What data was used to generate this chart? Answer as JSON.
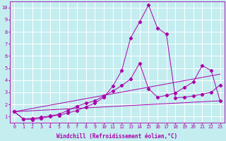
{
  "background_color": "#c4edf0",
  "grid_color": "#aadddd",
  "line_color": "#aa00aa",
  "xlabel": "Windchill (Refroidissement éolien,°C)",
  "xlabel_fontsize": 5.5,
  "xtick_fontsize": 4.8,
  "ytick_fontsize": 5.0,
  "xlim": [
    -0.5,
    23.5
  ],
  "ylim": [
    0.5,
    10.5
  ],
  "yticks": [
    1,
    2,
    3,
    4,
    5,
    6,
    7,
    8,
    9,
    10
  ],
  "xticks": [
    0,
    1,
    2,
    3,
    4,
    5,
    6,
    7,
    8,
    9,
    10,
    11,
    12,
    13,
    14,
    15,
    16,
    17,
    18,
    19,
    20,
    21,
    22,
    23
  ],
  "line1_x": [
    0,
    1,
    2,
    3,
    4,
    5,
    6,
    7,
    8,
    9,
    10,
    11,
    12,
    13,
    14,
    15,
    16,
    17,
    18,
    19,
    20,
    21,
    22,
    23
  ],
  "line1_y": [
    1.4,
    0.8,
    0.75,
    0.85,
    1.0,
    1.1,
    1.3,
    1.5,
    1.8,
    2.1,
    2.6,
    3.5,
    4.8,
    7.5,
    8.8,
    10.2,
    8.3,
    7.8,
    2.55,
    2.6,
    2.7,
    2.85,
    3.0,
    3.6
  ],
  "line2_x": [
    0,
    1,
    2,
    3,
    4,
    5,
    6,
    7,
    8,
    9,
    10,
    11,
    12,
    13,
    14,
    15,
    16,
    17,
    18,
    19,
    20,
    21,
    22,
    23
  ],
  "line2_y": [
    1.4,
    0.8,
    0.85,
    0.95,
    1.05,
    1.2,
    1.5,
    1.85,
    2.1,
    2.3,
    2.7,
    3.1,
    3.55,
    4.1,
    5.4,
    3.3,
    2.6,
    2.75,
    2.95,
    3.4,
    3.85,
    5.2,
    4.8,
    2.3
  ],
  "line3_x": [
    0,
    23
  ],
  "line3_y": [
    1.4,
    2.3
  ],
  "line4_x": [
    0,
    23
  ],
  "line4_y": [
    1.4,
    4.5
  ]
}
